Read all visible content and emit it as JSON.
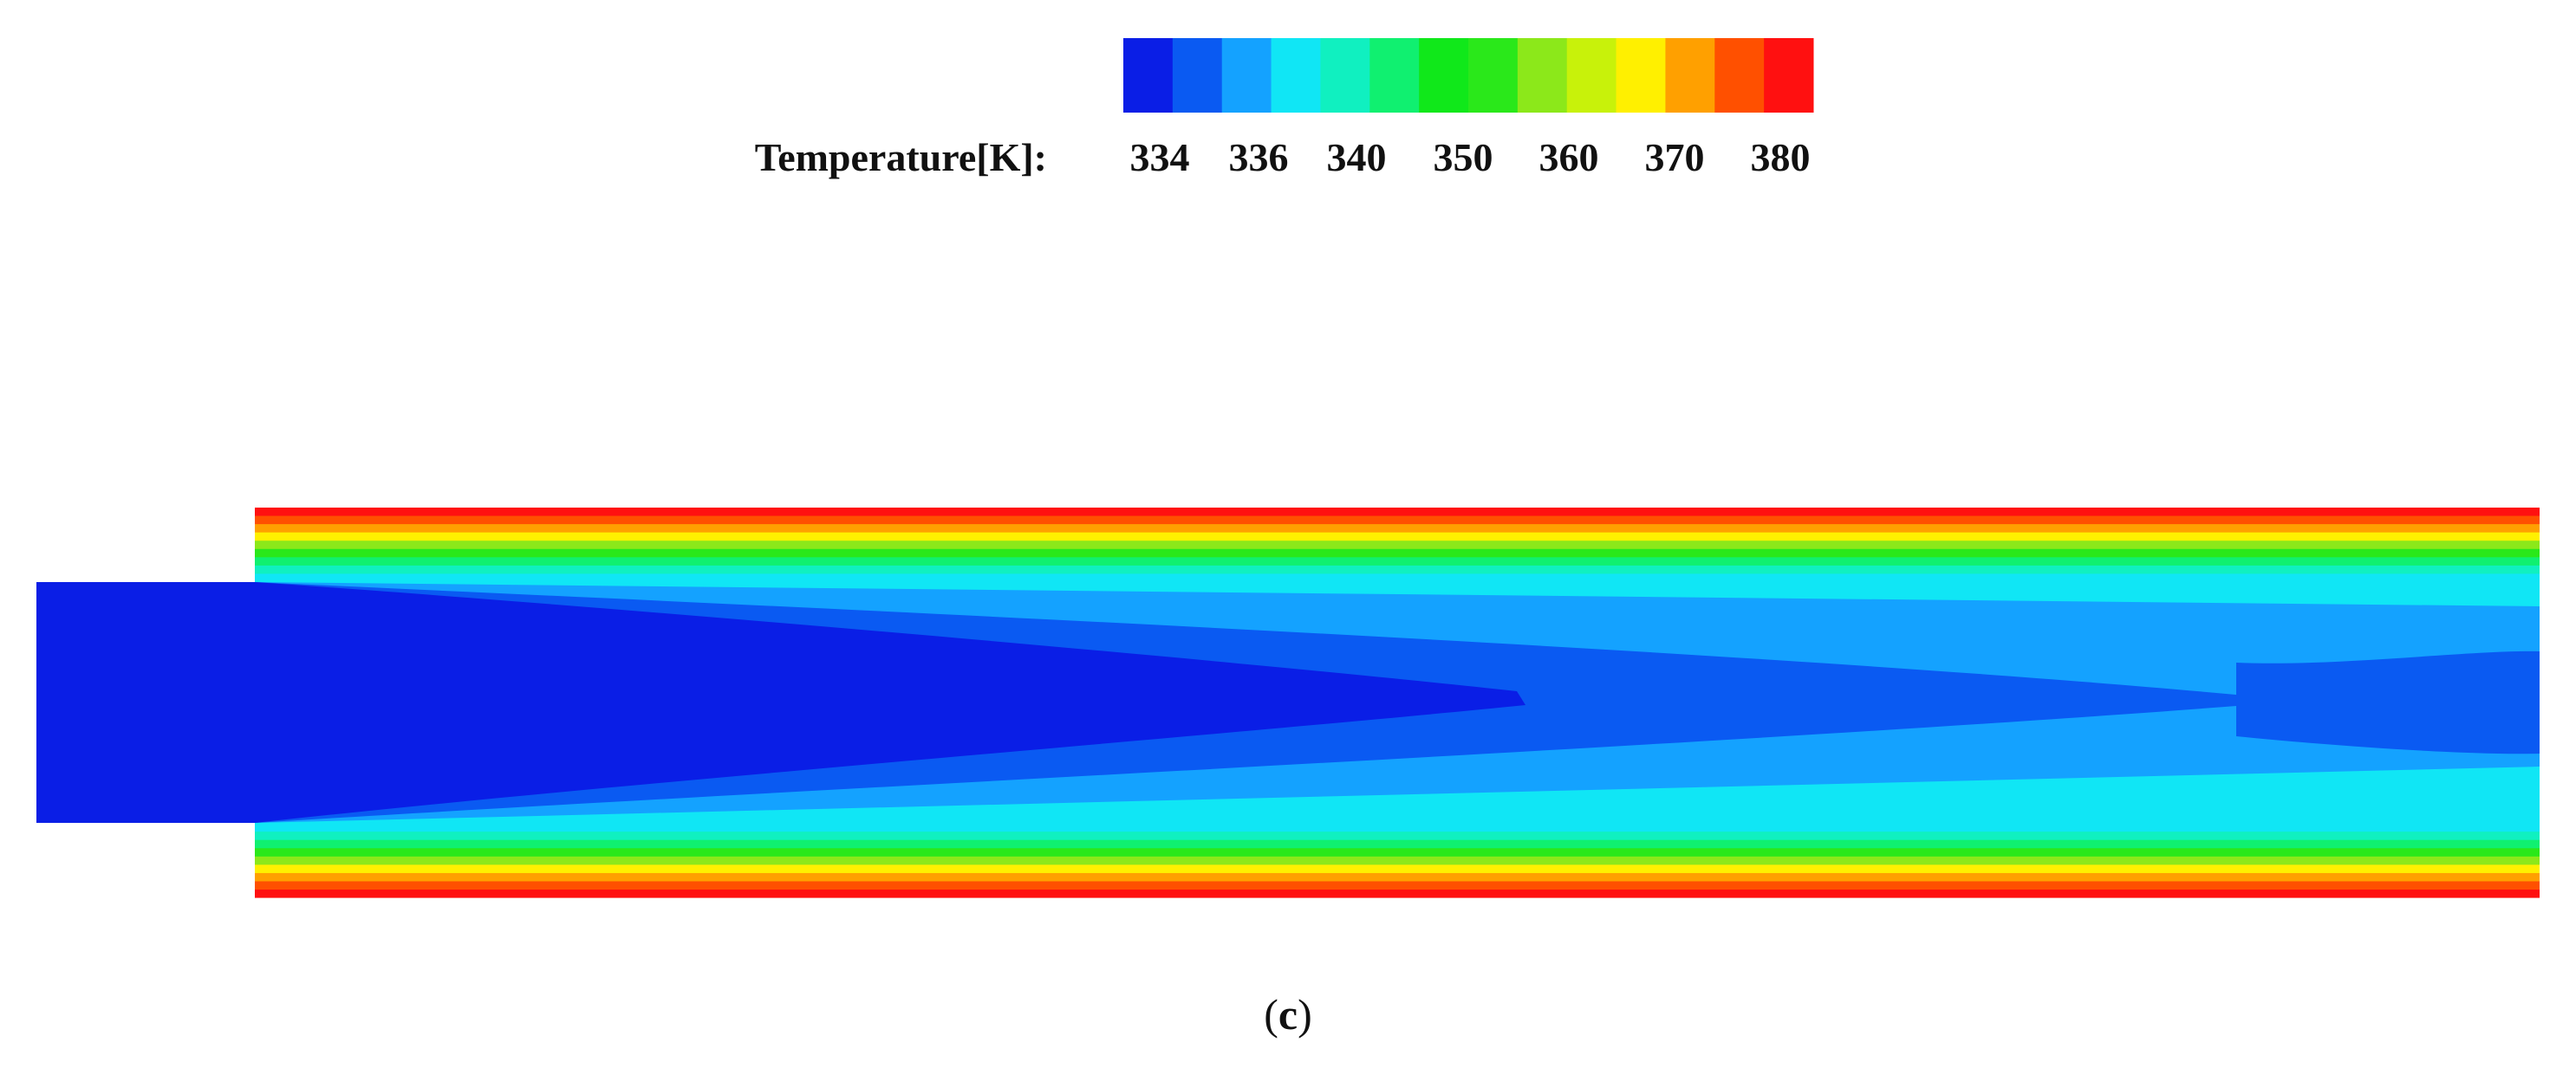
{
  "legend": {
    "title": "Temperature[K]:",
    "tick_labels": [
      "334",
      "336",
      "340",
      "350",
      "360",
      "370",
      "380"
    ],
    "bands": [
      {
        "color": "#0a1ee6"
      },
      {
        "color": "#0a5af2"
      },
      {
        "color": "#14a2ff"
      },
      {
        "color": "#10e6f5"
      },
      {
        "color": "#10f0c0"
      },
      {
        "color": "#10f070"
      },
      {
        "color": "#10e81a"
      },
      {
        "color": "#2ae81a"
      },
      {
        "color": "#8ce81a"
      },
      {
        "color": "#c8f20a"
      },
      {
        "color": "#fff000"
      },
      {
        "color": "#ffa000"
      },
      {
        "color": "#ff5000"
      },
      {
        "color": "#ff1010"
      }
    ]
  },
  "caption": {
    "text": "(c)",
    "letter": "c"
  },
  "contour": {
    "inlet_color": "#0a1ee6",
    "core_color": "#0a5af2",
    "mid_color": "#14a2ff",
    "wall_bands_colors": [
      "#10e6f5",
      "#10f0c0",
      "#10f070",
      "#2ae81a",
      "#8ce81a",
      "#fff000",
      "#ffa000",
      "#ff5000",
      "#ff1010"
    ]
  }
}
